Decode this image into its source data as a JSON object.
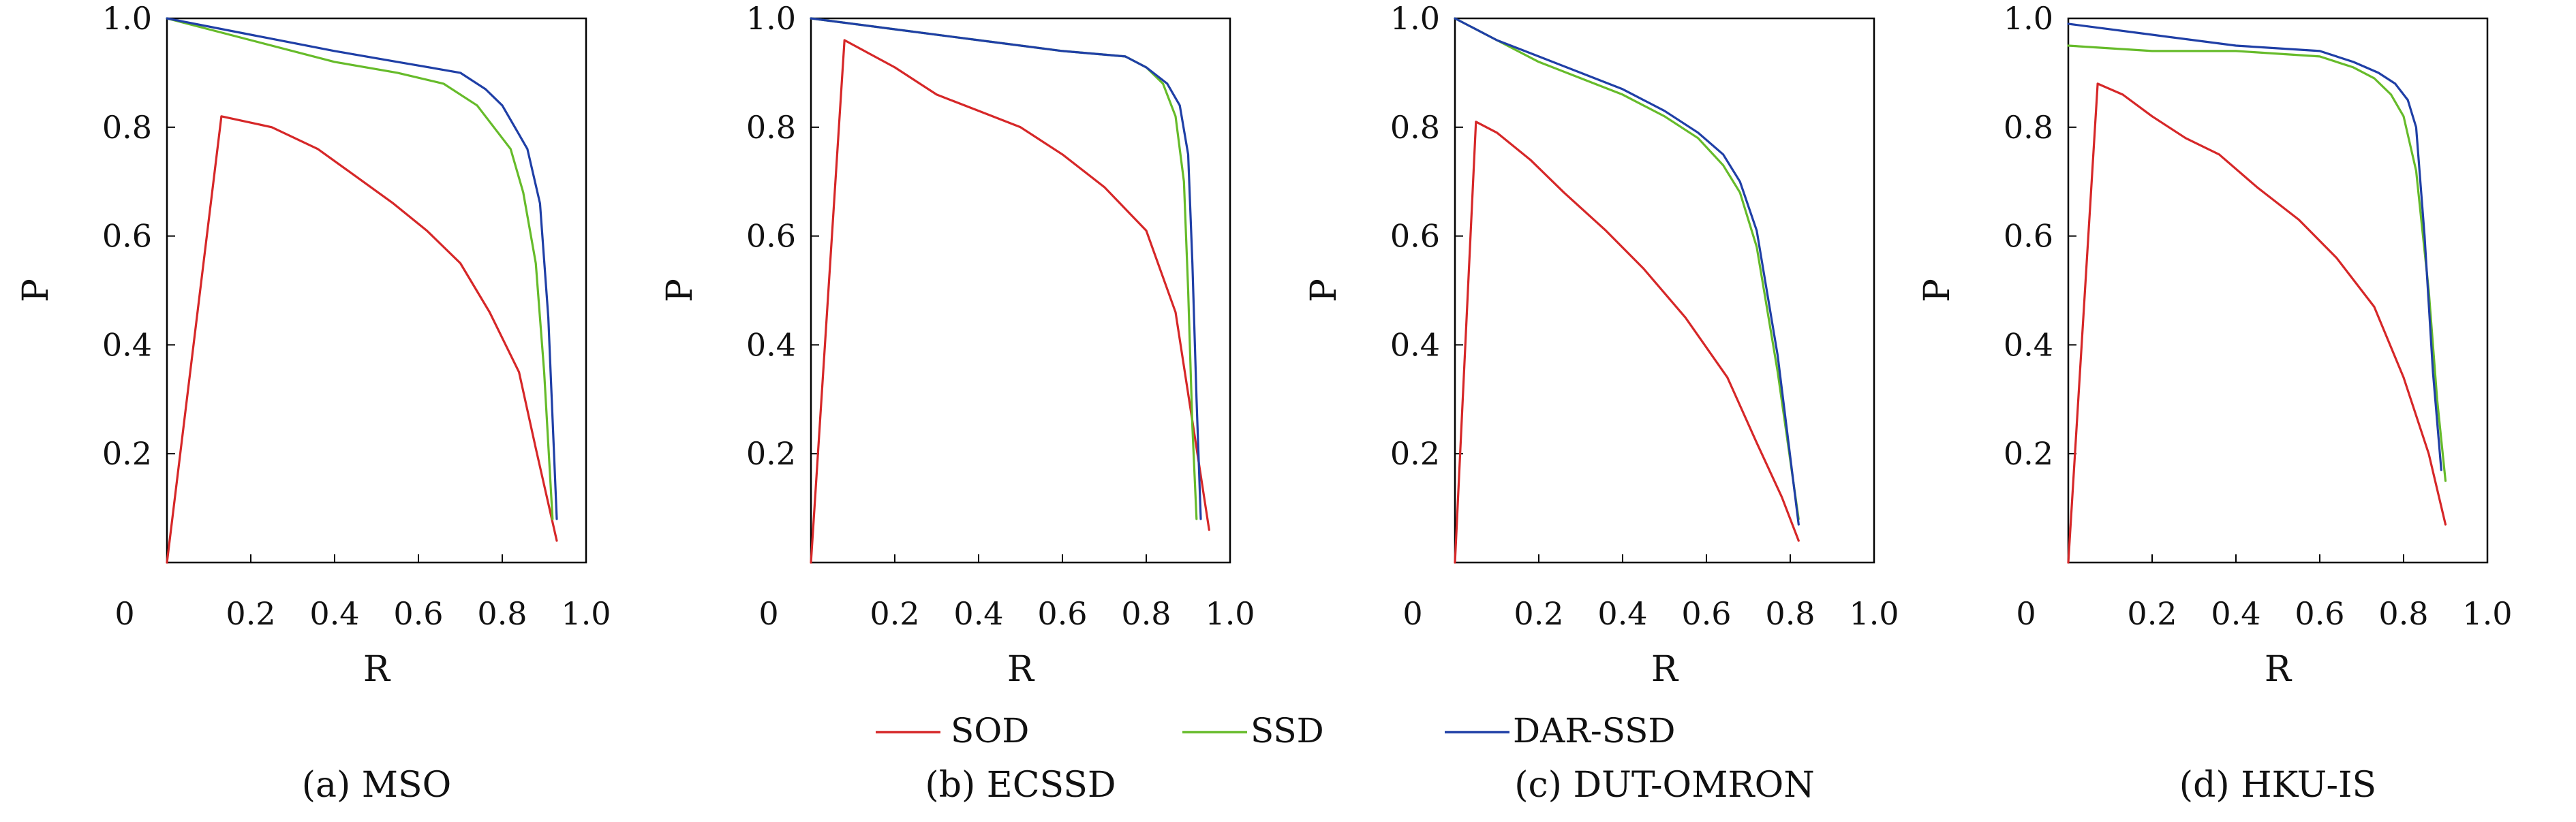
{
  "legend": [
    {
      "label": "SOD",
      "color": "#d62728"
    },
    {
      "label": "SSD",
      "color": "#66bb2a"
    },
    {
      "label": "DAR-SSD",
      "color": "#1f3fa6"
    }
  ],
  "chart_data": [
    {
      "type": "line",
      "caption": "(a) MSO",
      "xlabel": "R",
      "ylabel": "P",
      "xlim": [
        0,
        1
      ],
      "ylim": [
        0,
        1
      ],
      "xticks": [
        "0",
        "0.2",
        "0.4",
        "0.6",
        "0.8",
        "1.0"
      ],
      "yticks": [
        "0.2",
        "0.4",
        "0.6",
        "0.8",
        "1.0"
      ],
      "grid": false,
      "series": [
        {
          "name": "SOD",
          "color": "#d62728",
          "points": [
            [
              0,
              0
            ],
            [
              0.13,
              0.82
            ],
            [
              0.25,
              0.8
            ],
            [
              0.36,
              0.76
            ],
            [
              0.45,
              0.71
            ],
            [
              0.54,
              0.66
            ],
            [
              0.62,
              0.61
            ],
            [
              0.7,
              0.55
            ],
            [
              0.77,
              0.46
            ],
            [
              0.84,
              0.35
            ],
            [
              0.88,
              0.21
            ],
            [
              0.93,
              0.04
            ]
          ]
        },
        {
          "name": "SSD",
          "color": "#66bb2a",
          "points": [
            [
              0,
              1.0
            ],
            [
              0.2,
              0.96
            ],
            [
              0.4,
              0.92
            ],
            [
              0.55,
              0.9
            ],
            [
              0.66,
              0.88
            ],
            [
              0.74,
              0.84
            ],
            [
              0.78,
              0.8
            ],
            [
              0.82,
              0.76
            ],
            [
              0.85,
              0.68
            ],
            [
              0.88,
              0.55
            ],
            [
              0.9,
              0.35
            ],
            [
              0.92,
              0.08
            ]
          ]
        },
        {
          "name": "DAR-SSD",
          "color": "#1f3fa6",
          "points": [
            [
              0,
              1.0
            ],
            [
              0.2,
              0.97
            ],
            [
              0.4,
              0.94
            ],
            [
              0.55,
              0.92
            ],
            [
              0.7,
              0.9
            ],
            [
              0.76,
              0.87
            ],
            [
              0.8,
              0.84
            ],
            [
              0.83,
              0.8
            ],
            [
              0.86,
              0.76
            ],
            [
              0.89,
              0.66
            ],
            [
              0.91,
              0.45
            ],
            [
              0.93,
              0.08
            ]
          ]
        }
      ]
    },
    {
      "type": "line",
      "caption": "(b) ECSSD",
      "xlabel": "R",
      "ylabel": "P",
      "xlim": [
        0,
        1
      ],
      "ylim": [
        0,
        1
      ],
      "xticks": [
        "0",
        "0.2",
        "0.4",
        "0.6",
        "0.8",
        "1.0"
      ],
      "yticks": [
        "0.2",
        "0.4",
        "0.6",
        "0.8",
        "1.0"
      ],
      "grid": false,
      "series": [
        {
          "name": "SOD",
          "color": "#d62728",
          "points": [
            [
              0,
              0
            ],
            [
              0.08,
              0.96
            ],
            [
              0.2,
              0.91
            ],
            [
              0.3,
              0.86
            ],
            [
              0.4,
              0.83
            ],
            [
              0.5,
              0.8
            ],
            [
              0.6,
              0.75
            ],
            [
              0.7,
              0.69
            ],
            [
              0.8,
              0.61
            ],
            [
              0.87,
              0.46
            ],
            [
              0.91,
              0.26
            ],
            [
              0.95,
              0.06
            ]
          ]
        },
        {
          "name": "SSD",
          "color": "#66bb2a",
          "points": [
            [
              0,
              1.0
            ],
            [
              0.2,
              0.98
            ],
            [
              0.4,
              0.96
            ],
            [
              0.6,
              0.94
            ],
            [
              0.75,
              0.93
            ],
            [
              0.8,
              0.91
            ],
            [
              0.84,
              0.88
            ],
            [
              0.87,
              0.82
            ],
            [
              0.89,
              0.7
            ],
            [
              0.9,
              0.5
            ],
            [
              0.91,
              0.25
            ],
            [
              0.92,
              0.08
            ]
          ]
        },
        {
          "name": "DAR-SSD",
          "color": "#1f3fa6",
          "points": [
            [
              0,
              1.0
            ],
            [
              0.2,
              0.98
            ],
            [
              0.4,
              0.96
            ],
            [
              0.6,
              0.94
            ],
            [
              0.75,
              0.93
            ],
            [
              0.8,
              0.91
            ],
            [
              0.85,
              0.88
            ],
            [
              0.88,
              0.84
            ],
            [
              0.9,
              0.75
            ],
            [
              0.91,
              0.55
            ],
            [
              0.92,
              0.3
            ],
            [
              0.93,
              0.08
            ]
          ]
        }
      ]
    },
    {
      "type": "line",
      "caption": "(c) DUT-OMRON",
      "xlabel": "R",
      "ylabel": "P",
      "xlim": [
        0,
        1
      ],
      "ylim": [
        0,
        1
      ],
      "xticks": [
        "0",
        "0.2",
        "0.4",
        "0.6",
        "0.8",
        "1.0"
      ],
      "yticks": [
        "0.2",
        "0.4",
        "0.6",
        "0.8",
        "1.0"
      ],
      "grid": false,
      "series": [
        {
          "name": "SOD",
          "color": "#d62728",
          "points": [
            [
              0,
              0
            ],
            [
              0.05,
              0.81
            ],
            [
              0.1,
              0.79
            ],
            [
              0.18,
              0.74
            ],
            [
              0.26,
              0.68
            ],
            [
              0.36,
              0.61
            ],
            [
              0.45,
              0.54
            ],
            [
              0.55,
              0.45
            ],
            [
              0.65,
              0.34
            ],
            [
              0.72,
              0.22
            ],
            [
              0.78,
              0.12
            ],
            [
              0.82,
              0.04
            ]
          ]
        },
        {
          "name": "SSD",
          "color": "#66bb2a",
          "points": [
            [
              0,
              1.0
            ],
            [
              0.1,
              0.96
            ],
            [
              0.2,
              0.92
            ],
            [
              0.3,
              0.89
            ],
            [
              0.4,
              0.86
            ],
            [
              0.5,
              0.82
            ],
            [
              0.58,
              0.78
            ],
            [
              0.64,
              0.73
            ],
            [
              0.68,
              0.68
            ],
            [
              0.72,
              0.58
            ],
            [
              0.77,
              0.35
            ],
            [
              0.82,
              0.08
            ]
          ]
        },
        {
          "name": "DAR-SSD",
          "color": "#1f3fa6",
          "points": [
            [
              0,
              1.0
            ],
            [
              0.1,
              0.96
            ],
            [
              0.2,
              0.93
            ],
            [
              0.3,
              0.9
            ],
            [
              0.4,
              0.87
            ],
            [
              0.5,
              0.83
            ],
            [
              0.58,
              0.79
            ],
            [
              0.64,
              0.75
            ],
            [
              0.68,
              0.7
            ],
            [
              0.72,
              0.61
            ],
            [
              0.77,
              0.38
            ],
            [
              0.82,
              0.07
            ]
          ]
        }
      ]
    },
    {
      "type": "line",
      "caption": "(d) HKU-IS",
      "xlabel": "R",
      "ylabel": "P",
      "xlim": [
        0,
        1
      ],
      "ylim": [
        0,
        1
      ],
      "xticks": [
        "0",
        "0.2",
        "0.4",
        "0.6",
        "0.8",
        "1.0"
      ],
      "yticks": [
        "0.2",
        "0.4",
        "0.6",
        "0.8",
        "1.0"
      ],
      "grid": false,
      "series": [
        {
          "name": "SOD",
          "color": "#d62728",
          "points": [
            [
              0,
              0
            ],
            [
              0.07,
              0.88
            ],
            [
              0.13,
              0.86
            ],
            [
              0.2,
              0.82
            ],
            [
              0.28,
              0.78
            ],
            [
              0.36,
              0.75
            ],
            [
              0.45,
              0.69
            ],
            [
              0.55,
              0.63
            ],
            [
              0.64,
              0.56
            ],
            [
              0.73,
              0.47
            ],
            [
              0.8,
              0.34
            ],
            [
              0.86,
              0.2
            ],
            [
              0.9,
              0.07
            ]
          ]
        },
        {
          "name": "SSD",
          "color": "#66bb2a",
          "points": [
            [
              0,
              0.95
            ],
            [
              0.2,
              0.94
            ],
            [
              0.4,
              0.94
            ],
            [
              0.6,
              0.93
            ],
            [
              0.68,
              0.91
            ],
            [
              0.73,
              0.89
            ],
            [
              0.77,
              0.86
            ],
            [
              0.8,
              0.82
            ],
            [
              0.83,
              0.72
            ],
            [
              0.86,
              0.5
            ],
            [
              0.88,
              0.3
            ],
            [
              0.9,
              0.15
            ]
          ]
        },
        {
          "name": "DAR-SSD",
          "color": "#1f3fa6",
          "points": [
            [
              0,
              0.99
            ],
            [
              0.2,
              0.97
            ],
            [
              0.4,
              0.95
            ],
            [
              0.6,
              0.94
            ],
            [
              0.68,
              0.92
            ],
            [
              0.74,
              0.9
            ],
            [
              0.78,
              0.88
            ],
            [
              0.81,
              0.85
            ],
            [
              0.83,
              0.8
            ],
            [
              0.85,
              0.6
            ],
            [
              0.87,
              0.35
            ],
            [
              0.89,
              0.17
            ]
          ]
        }
      ]
    }
  ]
}
